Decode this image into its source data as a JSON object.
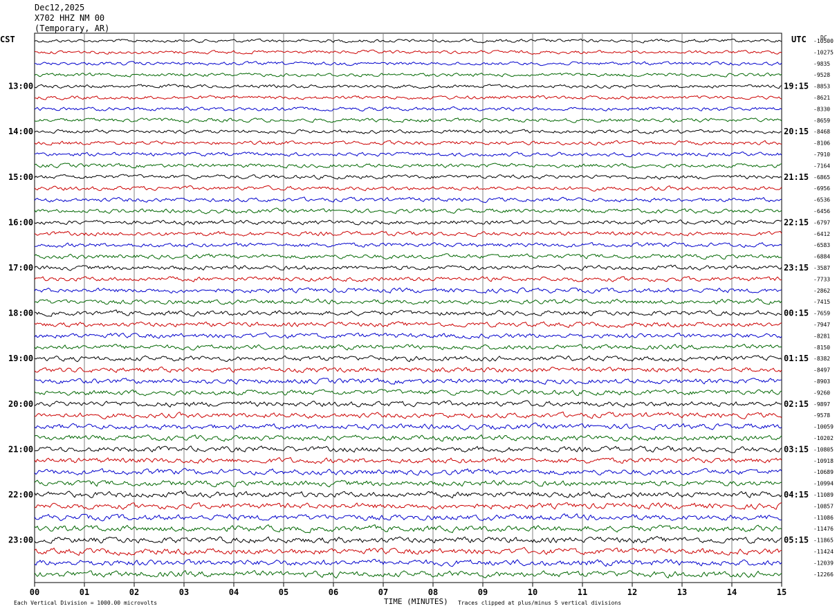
{
  "header": {
    "date": "Dec12,2025",
    "station": "X702 HHZ NM 00",
    "location": "(Temporary, AR)"
  },
  "axis": {
    "left_label": "CST",
    "right_label": "UTC",
    "xlabel": "TIME (MINUTES)",
    "top_right_fragment": "DC"
  },
  "footer": {
    "scale_note": "Each Vertical Division = 1000.00 microvolts",
    "clip_note": "Traces clipped at plus/minus 5 vertical divisions"
  },
  "colors": {
    "trace_cycle": [
      "#000000",
      "#cc0000",
      "#0000cc",
      "#006600"
    ],
    "grid": "#808080"
  },
  "chart_data": {
    "type": "helicorder",
    "x_ticks": [
      "00",
      "01",
      "02",
      "03",
      "04",
      "05",
      "06",
      "07",
      "08",
      "09",
      "10",
      "11",
      "12",
      "13",
      "14",
      "15"
    ],
    "x_range": [
      0,
      15
    ],
    "left_hour_labels": [
      "13:00",
      "14:00",
      "15:00",
      "16:00",
      "17:00",
      "18:00",
      "19:00",
      "20:00",
      "21:00",
      "22:00",
      "23:00"
    ],
    "right_hour_labels": [
      "19:15",
      "20:15",
      "21:15",
      "22:15",
      "23:15",
      "00:15",
      "01:15",
      "02:15",
      "03:15",
      "04:15",
      "05:15"
    ],
    "hour_label_first_row": 4,
    "rows_per_hour": 4,
    "trace_offsets": [
      "-10500",
      "-10275",
      "-9835",
      "-9528",
      "-8853",
      "-8621",
      "-8330",
      "-8659",
      "-8468",
      "-8106",
      "-7910",
      "-7164",
      "-6865",
      "-6956",
      "-6536",
      "-6456",
      "-6797",
      "-6412",
      "-6583",
      "-6884",
      "-3587",
      "-7733",
      "-2862",
      "-7415",
      "-7659",
      "-7947",
      "-8281",
      "-8150",
      "-8382",
      "-8497",
      "-8903",
      "-9260",
      "-9897",
      "-9578",
      "-10059",
      "-10202",
      "-10805",
      "-10918",
      "-10689",
      "-10994",
      "-11089",
      "-10857",
      "-11086",
      "-11476",
      "-11865",
      "-11424",
      "-12039",
      "-12266"
    ]
  }
}
